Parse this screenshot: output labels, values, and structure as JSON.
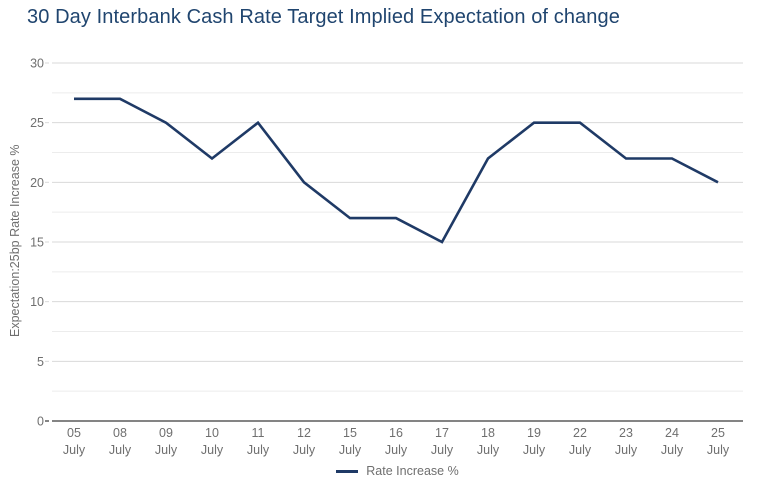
{
  "title": "30 Day Interbank Cash Rate Target Implied Expectation of change",
  "legend": {
    "label": "Rate Increase %"
  },
  "colors": {
    "title": "#20456f",
    "line": "#1f3a66",
    "axis_text": "#6f6f6f",
    "grid_major": "#d9d9d9",
    "grid_minor": "#ececec",
    "zero_line": "#848484",
    "background": "#ffffff"
  },
  "chart_data": {
    "type": "line",
    "title": "30 Day Interbank Cash Rate Target Implied Expectation of change",
    "categories": [
      "05",
      "08",
      "09",
      "10",
      "11",
      "12",
      "15",
      "16",
      "17",
      "18",
      "19",
      "22",
      "23",
      "24",
      "25"
    ],
    "category_sub_label": "July",
    "series": [
      {
        "name": "Rate Increase %",
        "color": "#1f3a66",
        "values": [
          27,
          27,
          25,
          22,
          25,
          20,
          17,
          17,
          15,
          22,
          25,
          25,
          22,
          22,
          20
        ]
      }
    ],
    "xlabel": "",
    "ylabel": "Expectation:25bp Rate Increase %",
    "ylim": [
      0,
      30
    ],
    "ytick_values": [
      0,
      5,
      10,
      15,
      20,
      25,
      30
    ],
    "grid_step": 2.5,
    "grid": true,
    "legend_position": "bottom-center",
    "markers": false
  }
}
